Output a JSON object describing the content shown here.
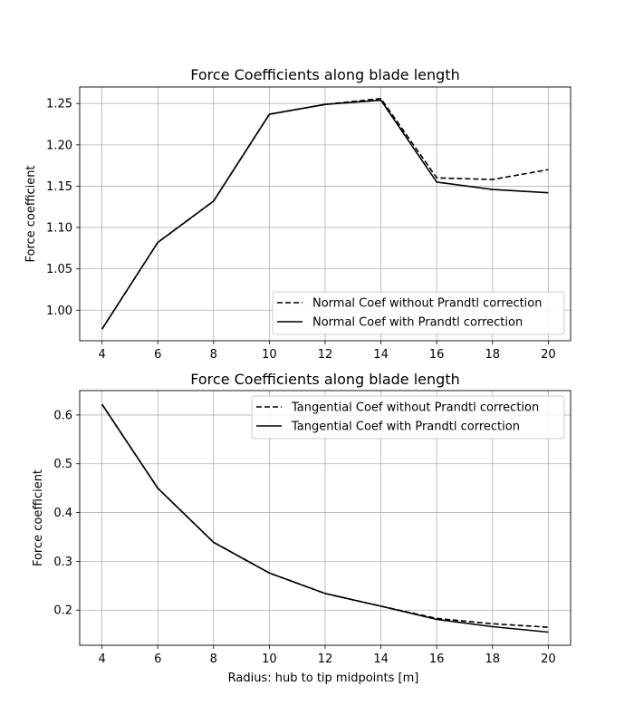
{
  "chart_data": [
    {
      "type": "line",
      "title": "Force Coefficients along blade length",
      "xlabel": "",
      "ylabel": "Force coefficient",
      "x": [
        4,
        6,
        8,
        10,
        12,
        14,
        16,
        18,
        20
      ],
      "xlim": [
        3.2,
        20.8
      ],
      "ylim": [
        0.963,
        1.27
      ],
      "xticks": [
        "4",
        "6",
        "8",
        "10",
        "12",
        "14",
        "16",
        "18",
        "20"
      ],
      "yticks": [
        "1.00",
        "1.05",
        "1.10",
        "1.15",
        "1.20",
        "1.25"
      ],
      "grid": true,
      "legend_position": "lower-right",
      "series": [
        {
          "name": "Normal Coef without Prandtl correction",
          "style": "dashed",
          "color": "#000000",
          "values": [
            0.977,
            1.082,
            1.132,
            1.237,
            1.249,
            1.256,
            1.16,
            1.158,
            1.17
          ]
        },
        {
          "name": "Normal Coef with Prandtl correction",
          "style": "solid",
          "color": "#000000",
          "values": [
            0.977,
            1.082,
            1.132,
            1.237,
            1.249,
            1.254,
            1.155,
            1.146,
            1.142
          ]
        }
      ]
    },
    {
      "type": "line",
      "title": "Force Coefficients along blade length",
      "xlabel": "Radius: hub to tip midpoints [m]",
      "ylabel": "Force coefficient",
      "x": [
        4,
        6,
        8,
        10,
        12,
        14,
        16,
        18,
        20
      ],
      "xlim": [
        3.2,
        20.8
      ],
      "ylim": [
        0.128,
        0.65
      ],
      "xticks": [
        "4",
        "6",
        "8",
        "10",
        "12",
        "14",
        "16",
        "18",
        "20"
      ],
      "yticks": [
        "0.2",
        "0.3",
        "0.4",
        "0.5",
        "0.6"
      ],
      "grid": true,
      "legend_position": "upper-right",
      "series": [
        {
          "name": "Tangential Coef without Prandtl correction",
          "style": "dashed",
          "color": "#000000",
          "values": [
            0.622,
            0.45,
            0.339,
            0.276,
            0.234,
            0.208,
            0.183,
            0.172,
            0.165
          ]
        },
        {
          "name": "Tangential Coef with Prandtl correction",
          "style": "solid",
          "color": "#000000",
          "values": [
            0.622,
            0.45,
            0.339,
            0.276,
            0.234,
            0.208,
            0.181,
            0.166,
            0.155
          ]
        }
      ]
    }
  ]
}
